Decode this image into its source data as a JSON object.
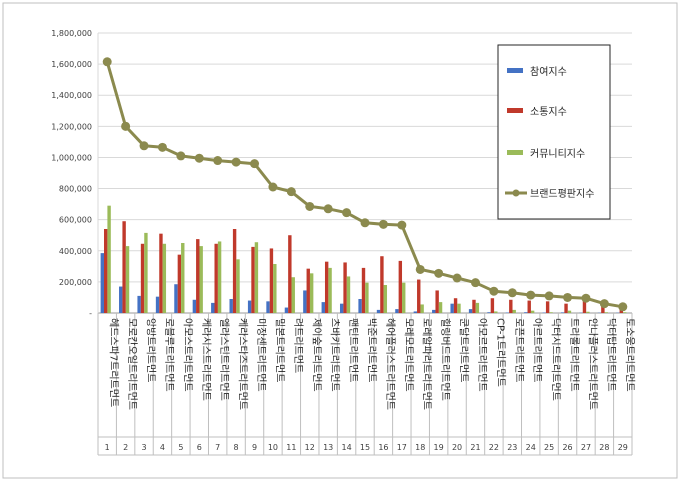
{
  "chart_data": {
    "type": "bar",
    "ylim": [
      0,
      1800000
    ],
    "yticks": [
      0,
      200000,
      400000,
      600000,
      800000,
      1000000,
      1200000,
      1400000,
      1600000,
      1800000
    ],
    "ytick_labels": [
      "-",
      "200,000",
      "400,000",
      "600,000",
      "800,000",
      "1,000,000",
      "1,200,000",
      "1,400,000",
      "1,600,000",
      "1,800,000"
    ],
    "grid": true,
    "legend_position": "right",
    "categories": [
      "헤드스파7트리트먼트",
      "모로칸오일트리트먼트",
      "앙방트리트먼트",
      "로블루트리트먼트",
      "아모스트리트먼트",
      "케라시스트리트먼트",
      "엘라스틴트리트먼트",
      "케라스타즈트리트먼트",
      "미장센트리트먼트",
      "밀본트리트먼트",
      "려트리트먼트",
      "제이숲트리트먼트",
      "츠바키트리트먼트",
      "팬틴트리트먼트",
      "박준트리트먼트",
      "헤어플러스트리트먼트",
      "모레모트리트먼트",
      "로레알파리트리트먼트",
      "힐링버드트리트먼트",
      "쿤달트리트먼트",
      "아모르트리트먼트",
      "CP-1트리트먼트",
      "로픈트리트먼트",
      "아르트리트먼트",
      "닥터시드트리트먼트",
      "트리롤트리트먼트",
      "안나플러스트리트먼트",
      "닥터탑트리트먼트",
      "토소웅트리트먼트"
    ],
    "category_numbers": [
      "1",
      "2",
      "3",
      "4",
      "5",
      "6",
      "7",
      "8",
      "9",
      "10",
      "11",
      "12",
      "13",
      "14",
      "15",
      "16",
      "17",
      "18",
      "19",
      "20",
      "21",
      "22",
      "23",
      "24",
      "25",
      "26",
      "27",
      "28",
      "29"
    ],
    "series": [
      {
        "name": "참여지수",
        "kind": "bar",
        "color": "#4472C4",
        "values": [
          385000,
          170000,
          110000,
          105000,
          185000,
          85000,
          65000,
          90000,
          80000,
          75000,
          35000,
          145000,
          70000,
          60000,
          90000,
          20000,
          25000,
          10000,
          20000,
          60000,
          25000,
          5000,
          3000,
          5000,
          3000,
          4000,
          2000,
          2000,
          2000
        ]
      },
      {
        "name": "소통지수",
        "kind": "bar",
        "color": "#C0392B",
        "values": [
          540000,
          590000,
          445000,
          510000,
          375000,
          475000,
          445000,
          540000,
          425000,
          415000,
          500000,
          285000,
          330000,
          325000,
          290000,
          365000,
          335000,
          215000,
          145000,
          95000,
          85000,
          95000,
          85000,
          80000,
          75000,
          60000,
          80000,
          55000,
          30000
        ]
      },
      {
        "name": "커뮤니티지수",
        "kind": "bar",
        "color": "#9BBB59",
        "values": [
          690000,
          430000,
          515000,
          445000,
          450000,
          430000,
          460000,
          345000,
          455000,
          315000,
          230000,
          255000,
          290000,
          235000,
          195000,
          180000,
          195000,
          55000,
          70000,
          60000,
          65000,
          10000,
          20000,
          15000,
          5000,
          15000,
          8000,
          5000,
          5000
        ]
      },
      {
        "name": "브랜드평판지수",
        "kind": "line",
        "color": "#8B8A4E",
        "values": [
          1615000,
          1200000,
          1075000,
          1065000,
          1010000,
          995000,
          980000,
          970000,
          960000,
          810000,
          780000,
          685000,
          670000,
          645000,
          580000,
          570000,
          565000,
          280000,
          255000,
          225000,
          195000,
          140000,
          130000,
          115000,
          110000,
          100000,
          95000,
          60000,
          40000
        ]
      }
    ]
  }
}
